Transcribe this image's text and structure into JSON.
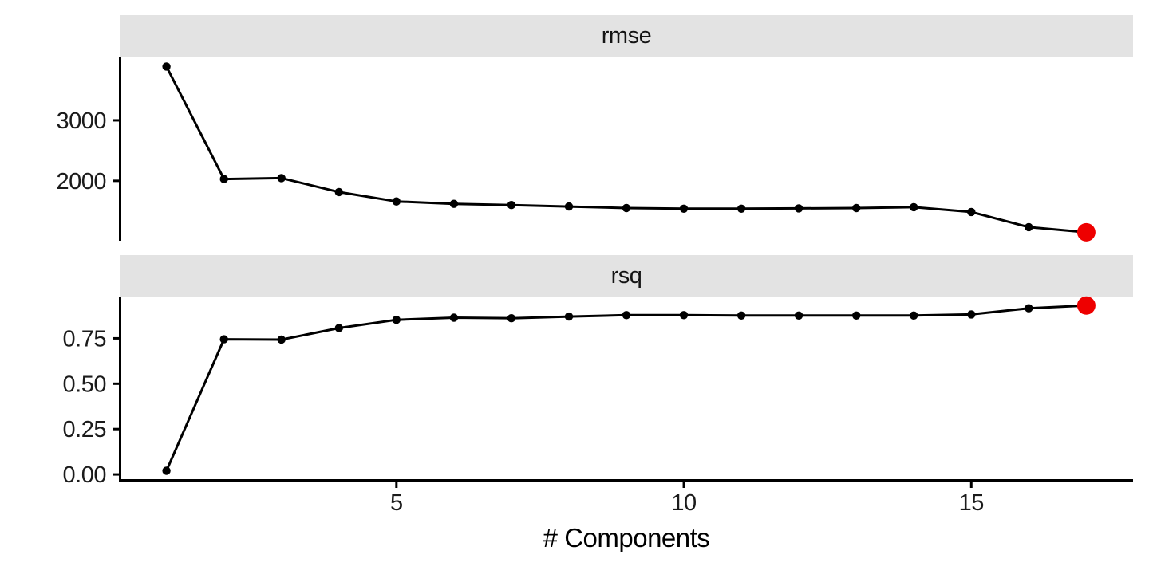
{
  "colors": {
    "highlight": "#EE0000",
    "strip_fill": "#E3E3E3",
    "line": "#000000",
    "axis": "#000000",
    "tick_label": "#1B1B1B",
    "background": "#FFFFFF"
  },
  "chart_data": {
    "type": "line",
    "faceted": true,
    "facet_titles": [
      "rmse",
      "rsq"
    ],
    "x_label": "# Components",
    "x": [
      1,
      2,
      3,
      4,
      5,
      6,
      7,
      8,
      9,
      10,
      11,
      12,
      13,
      14,
      15,
      16,
      17
    ],
    "xlim": [
      0.2,
      17.8
    ],
    "x_ticks": [
      5,
      10,
      15
    ],
    "x_tick_labels": [
      "5",
      "10",
      "15"
    ],
    "grid": false,
    "legend": "none",
    "highlight": {
      "x": 17,
      "color": "#EE0000",
      "note": "last point drawn as large red dot in both facets"
    },
    "panels": [
      {
        "facet": "rmse",
        "values": [
          3890,
          2030,
          2045,
          1815,
          1660,
          1620,
          1600,
          1575,
          1550,
          1540,
          1540,
          1545,
          1550,
          1565,
          1485,
          1235,
          1150
        ],
        "ylim": [
          1010,
          4040
        ],
        "y_ticks": [
          2000,
          3000
        ],
        "y_tick_labels": [
          "2000",
          "3000"
        ]
      },
      {
        "facet": "rsq",
        "values": [
          0.02,
          0.745,
          0.743,
          0.807,
          0.852,
          0.864,
          0.861,
          0.87,
          0.878,
          0.878,
          0.876,
          0.876,
          0.876,
          0.876,
          0.882,
          0.916,
          0.931
        ],
        "ylim": [
          -0.026,
          0.976
        ],
        "y_ticks": [
          0,
          0.25,
          0.5,
          0.75
        ],
        "y_tick_labels": [
          "0.00",
          "0.25",
          "0.50",
          "0.75"
        ]
      }
    ]
  }
}
